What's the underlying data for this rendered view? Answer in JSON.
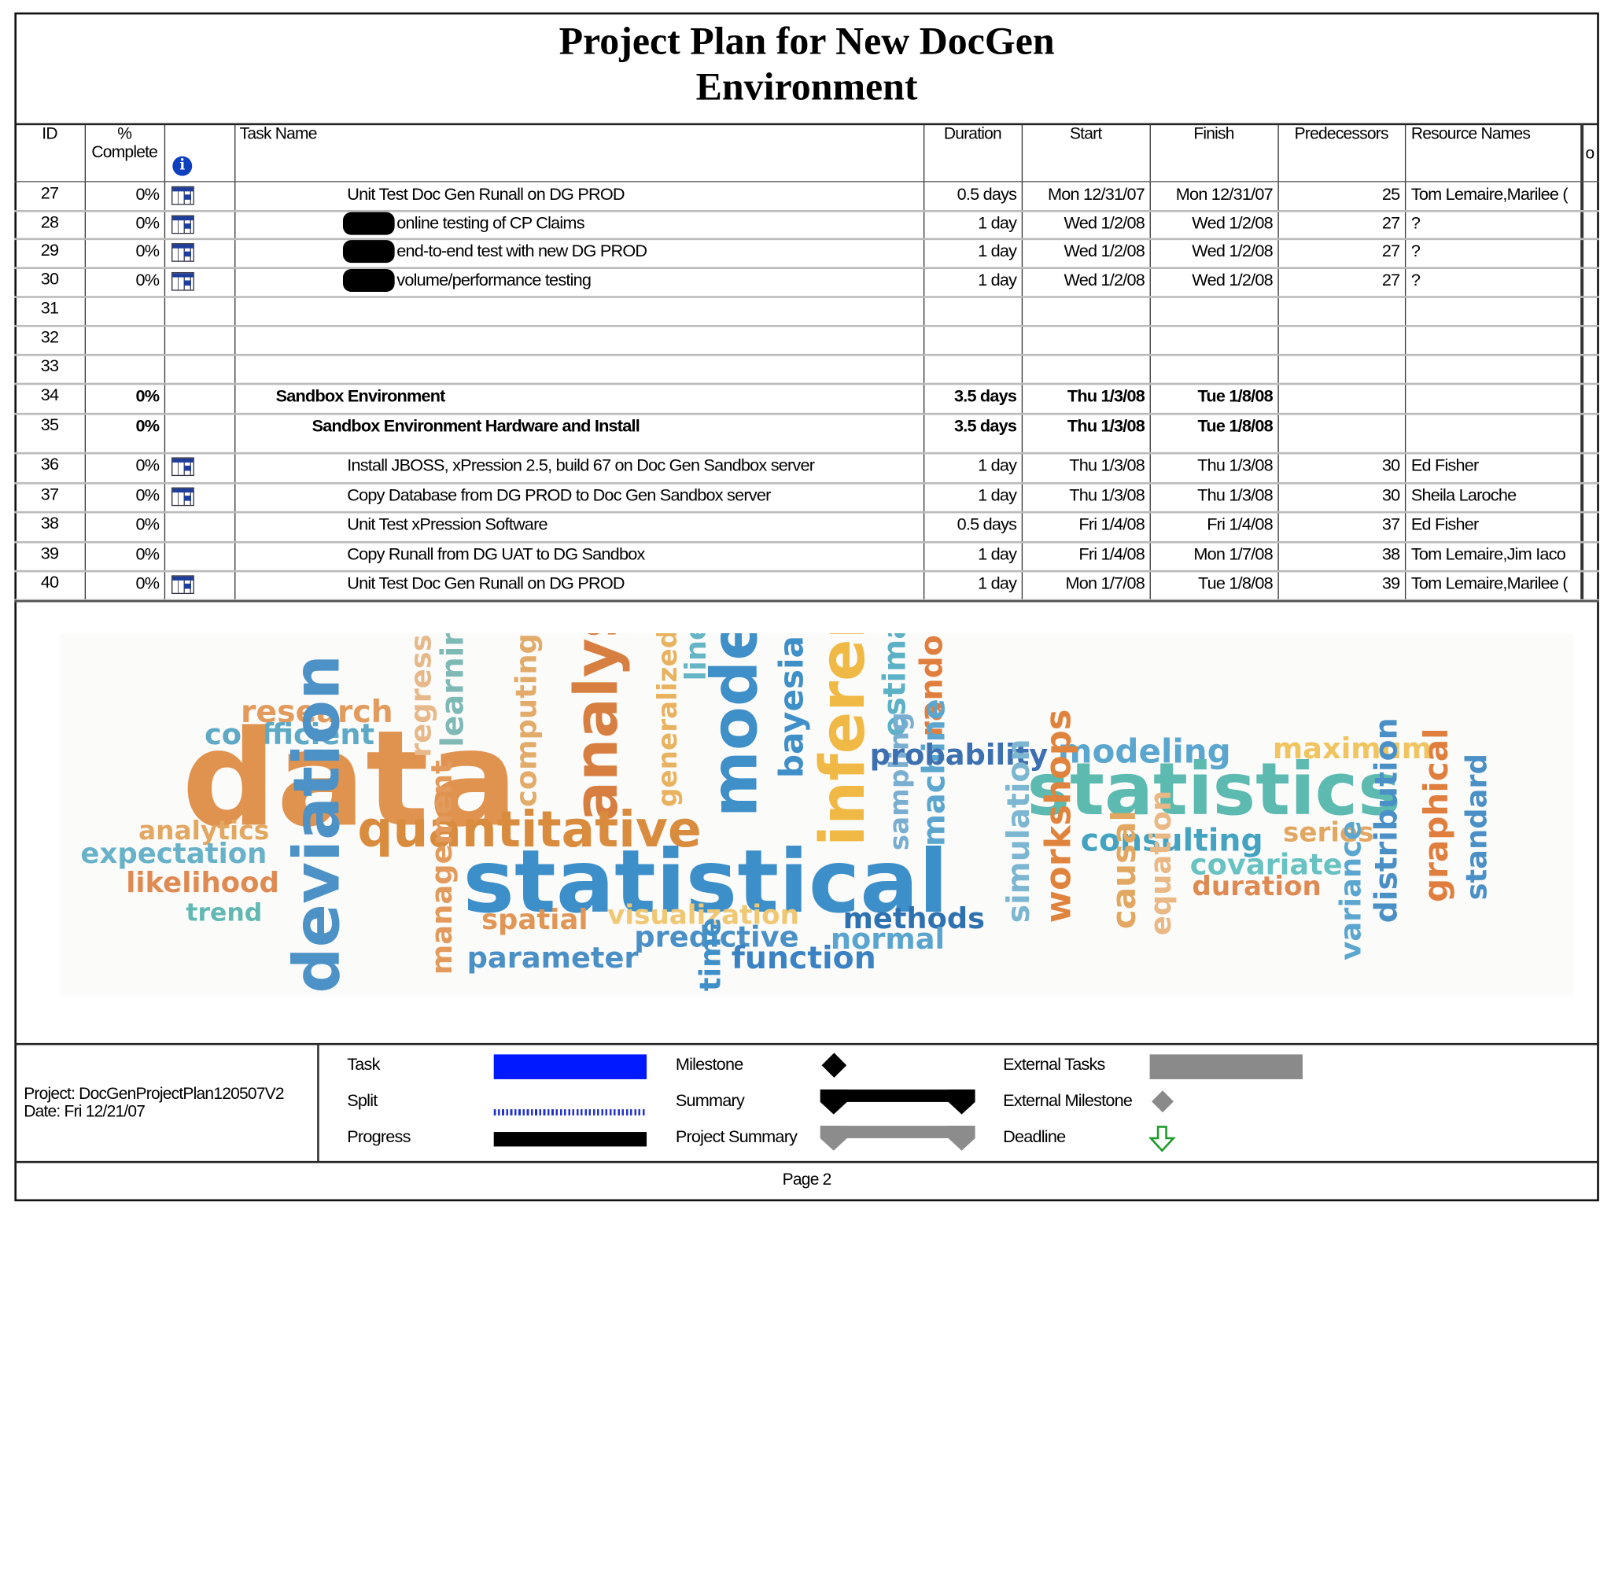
{
  "title": "Project Plan for New DocGen Environment",
  "columns": [
    "ID",
    "% Complete",
    "Task Name",
    "Duration",
    "Start",
    "Finish",
    "Predecessors",
    "Resource Names"
  ],
  "rows": [
    {
      "id": "27",
      "pct": "0%",
      "task": "Unit Test Doc Gen Runall on DG PROD",
      "duration": "0.5 days",
      "start": "Mon 12/31/07",
      "finish": "Mon 12/31/07",
      "pred": "25",
      "res": "Tom Lemaire,Marilee (",
      "indicator": true,
      "bold": false,
      "indent": 3,
      "redacted": false
    },
    {
      "id": "28",
      "pct": "0%",
      "task": "online testing of CP Claims",
      "duration": "1 day",
      "start": "Wed 1/2/08",
      "finish": "Wed 1/2/08",
      "pred": "27",
      "res": "?",
      "indicator": true,
      "bold": false,
      "indent": 3,
      "redacted": true
    },
    {
      "id": "29",
      "pct": "0%",
      "task": "end-to-end test with new DG PROD",
      "duration": "1 day",
      "start": "Wed 1/2/08",
      "finish": "Wed 1/2/08",
      "pred": "27",
      "res": "?",
      "indicator": true,
      "bold": false,
      "indent": 3,
      "redacted": true
    },
    {
      "id": "30",
      "pct": "0%",
      "task": "volume/performance testing",
      "duration": "1 day",
      "start": "Wed 1/2/08",
      "finish": "Wed 1/2/08",
      "pred": "27",
      "res": "?",
      "indicator": true,
      "bold": false,
      "indent": 3,
      "redacted": true
    },
    {
      "id": "31",
      "pct": "",
      "task": "",
      "duration": "",
      "start": "",
      "finish": "",
      "pred": "",
      "res": "",
      "indicator": false,
      "bold": false,
      "indent": 0,
      "redacted": false
    },
    {
      "id": "32",
      "pct": "",
      "task": "",
      "duration": "",
      "start": "",
      "finish": "",
      "pred": "",
      "res": "",
      "indicator": false,
      "bold": false,
      "indent": 0,
      "redacted": false
    },
    {
      "id": "33",
      "pct": "",
      "task": "",
      "duration": "",
      "start": "",
      "finish": "",
      "pred": "",
      "res": "",
      "indicator": false,
      "bold": false,
      "indent": 0,
      "redacted": false
    },
    {
      "id": "34",
      "pct": "0%",
      "task": "Sandbox Environment",
      "duration": "3.5 days",
      "start": "Thu 1/3/08",
      "finish": "Tue 1/8/08",
      "pred": "",
      "res": "",
      "indicator": false,
      "bold": true,
      "indent": 1,
      "redacted": false
    },
    {
      "id": "35",
      "pct": "0%",
      "task": "Sandbox Environment Hardware and Install",
      "duration": "3.5 days",
      "start": "Thu 1/3/08",
      "finish": "Tue 1/8/08",
      "pred": "",
      "res": "",
      "indicator": false,
      "bold": true,
      "indent": 2,
      "redacted": false
    },
    {
      "id": "36",
      "pct": "0%",
      "task": "Install JBOSS, xPression 2.5, build 67 on Doc Gen Sandbox server",
      "duration": "1 day",
      "start": "Thu 1/3/08",
      "finish": "Thu 1/3/08",
      "pred": "30",
      "res": "Ed Fisher",
      "indicator": true,
      "bold": false,
      "indent": 3,
      "redacted": false
    },
    {
      "id": "37",
      "pct": "0%",
      "task": "Copy Database from DG PROD to Doc Gen Sandbox server",
      "duration": "1 day",
      "start": "Thu 1/3/08",
      "finish": "Thu 1/3/08",
      "pred": "30",
      "res": "Sheila Laroche",
      "indicator": true,
      "bold": false,
      "indent": 3,
      "redacted": false
    },
    {
      "id": "38",
      "pct": "0%",
      "task": "Unit Test xPression Software",
      "duration": "0.5 days",
      "start": "Fri 1/4/08",
      "finish": "Fri 1/4/08",
      "pred": "37",
      "res": "Ed Fisher",
      "indicator": false,
      "bold": false,
      "indent": 3,
      "redacted": false
    },
    {
      "id": "39",
      "pct": "0%",
      "task": "Copy Runall from DG UAT to DG Sandbox",
      "duration": "1 day",
      "start": "Fri 1/4/08",
      "finish": "Mon 1/7/08",
      "pred": "38",
      "res": "Tom Lemaire,Jim Iaco",
      "indicator": false,
      "bold": false,
      "indent": 3,
      "redacted": false
    },
    {
      "id": "40",
      "pct": "0%",
      "task": "Unit Test Doc Gen Runall on DG PROD",
      "duration": "1 day",
      "start": "Mon 1/7/08",
      "finish": "Tue 1/8/08",
      "pred": "39",
      "res": "Tom Lemaire,Marilee (",
      "indicator": true,
      "bold": false,
      "indent": 3,
      "redacted": false
    }
  ],
  "wordcloud": [
    {
      "text": "research",
      "color": "#e29b5c"
    },
    {
      "text": "coefficient",
      "color": "#5da9c6"
    },
    {
      "text": "data",
      "color": "#e0934f"
    },
    {
      "text": "analytics",
      "color": "#e2a760"
    },
    {
      "text": "expectation",
      "color": "#67b2c9"
    },
    {
      "text": "likelihood",
      "color": "#df8a52"
    },
    {
      "text": "trend",
      "color": "#62b8b2"
    },
    {
      "text": "deviation",
      "color": "#4c92c6"
    },
    {
      "text": "regression",
      "color": "#e7b98a"
    },
    {
      "text": "learning",
      "color": "#7fb9b5"
    },
    {
      "text": "computing",
      "color": "#e2ab6a"
    },
    {
      "text": "analysis",
      "color": "#d77f40"
    },
    {
      "text": "generalized",
      "color": "#e8b25e"
    },
    {
      "text": "linear",
      "color": "#65b5c4"
    },
    {
      "text": "models",
      "color": "#3f8fc8"
    },
    {
      "text": "bayesian",
      "color": "#3f8fc8"
    },
    {
      "text": "inference",
      "color": "#f0b844"
    },
    {
      "text": "estimation",
      "color": "#5cb1c7"
    },
    {
      "text": "random",
      "color": "#e07e3e"
    },
    {
      "text": "sampling",
      "color": "#7aaed1"
    },
    {
      "text": "machine",
      "color": "#5aa6cf"
    },
    {
      "text": "quantitative",
      "color": "#d98c3e"
    },
    {
      "text": "management",
      "color": "#e29b5c"
    },
    {
      "text": "statistical",
      "color": "#3d8fc9"
    },
    {
      "text": "spatial",
      "color": "#e19655"
    },
    {
      "text": "visualization",
      "color": "#f0c772"
    },
    {
      "text": "methods",
      "color": "#2e71b0"
    },
    {
      "text": "predictive",
      "color": "#4a90c6"
    },
    {
      "text": "normal",
      "color": "#5aa5cf"
    },
    {
      "text": "parameter",
      "color": "#4a90c6"
    },
    {
      "text": "time",
      "color": "#3f8fc8"
    },
    {
      "text": "function",
      "color": "#3a82c4"
    },
    {
      "text": "probability",
      "color": "#3d70b0"
    },
    {
      "text": "modeling",
      "color": "#5aa6cf"
    },
    {
      "text": "maximum",
      "color": "#f0c45e"
    },
    {
      "text": "statistics",
      "color": "#5cbab0"
    },
    {
      "text": "simulation",
      "color": "#7cb6d1"
    },
    {
      "text": "workshops",
      "color": "#e0833c"
    },
    {
      "text": "consulting",
      "color": "#45a3c2"
    },
    {
      "text": "series",
      "color": "#e2a760"
    },
    {
      "text": "causal",
      "color": "#e2a760"
    },
    {
      "text": "equation",
      "color": "#e9b884"
    },
    {
      "text": "covariate",
      "color": "#68c2c1"
    },
    {
      "text": "duration",
      "color": "#df8a52"
    },
    {
      "text": "variance",
      "color": "#5aa6cf"
    },
    {
      "text": "distribution",
      "color": "#4a90c6"
    },
    {
      "text": "graphical",
      "color": "#e07e3e"
    },
    {
      "text": "standard",
      "color": "#4a90c6"
    }
  ],
  "legend": {
    "task": "Task",
    "split": "Split",
    "progress": "Progress",
    "milestone": "Milestone",
    "summary": "Summary",
    "project_summary": "Project Summary",
    "external_tasks": "External Tasks",
    "external_milestone": "External Milestone",
    "deadline": "Deadline"
  },
  "footer": {
    "project": "Project: DocGenProjectPlan120507V2",
    "date": "Date: Fri 12/21/07",
    "page": "Page 2"
  }
}
